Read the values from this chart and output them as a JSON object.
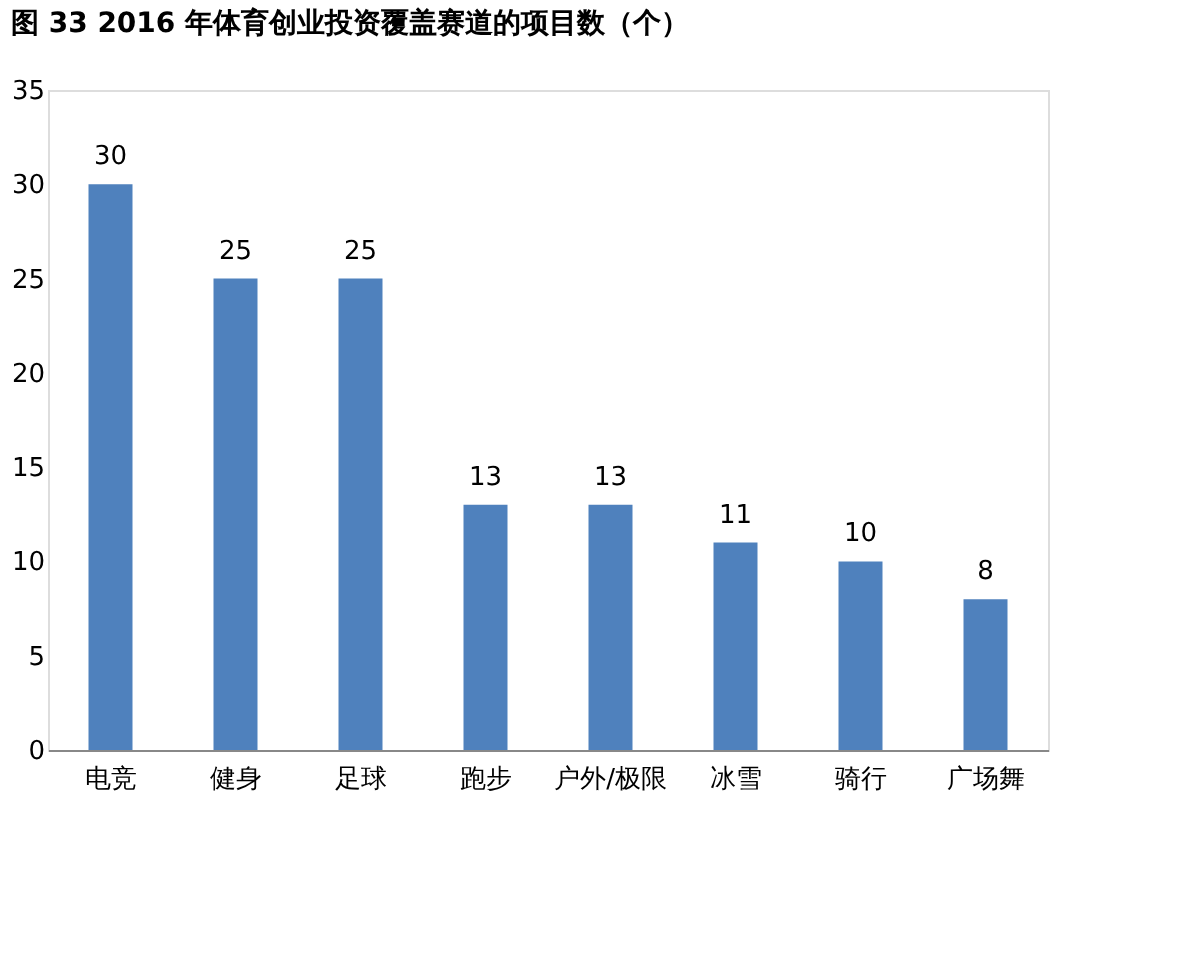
{
  "chart_data": {
    "type": "bar",
    "title": "图 33 2016 年体育创业投资覆盖赛道的项目数（个）",
    "categories": [
      "电竞",
      "健身",
      "足球",
      "跑步",
      "户外/极限",
      "冰雪",
      "骑行",
      "广场舞"
    ],
    "values": [
      30,
      25,
      25,
      13,
      13,
      11,
      10,
      8
    ],
    "color": "#4f81bd",
    "ylim": [
      0,
      35
    ],
    "yticks": [
      0,
      5,
      10,
      15,
      20,
      25,
      30,
      35
    ],
    "grid": false,
    "data_labels": true
  }
}
